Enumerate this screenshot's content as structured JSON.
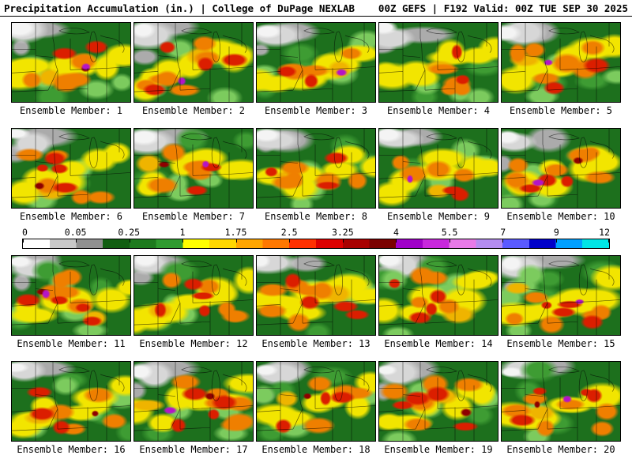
{
  "header": {
    "left": "Precipitation Accumulation (in.) | College of DuPage NEXLAB",
    "right": "00Z GEFS | F192 Valid: 00Z TUE SEP 30 2025"
  },
  "colorbar": {
    "ticks": [
      "0",
      "0.05",
      "0.25",
      "1",
      "1.75",
      "2.5",
      "3.25",
      "4",
      "5.5",
      "7",
      "9",
      "12"
    ],
    "colors": [
      "#FFFFFF",
      "#C8C8C8",
      "#909090",
      "#115E11",
      "#1E7A1E",
      "#2F9B2F",
      "#FFFF00",
      "#FFD700",
      "#FFA500",
      "#FF7800",
      "#FF3000",
      "#DC0000",
      "#A80000",
      "#7A0000",
      "#A000C8",
      "#C828DC",
      "#E87AE8",
      "#B48CF0",
      "#5A5AFF",
      "#0000C8",
      "#00A0FF",
      "#00E6E6"
    ]
  },
  "map_palette": {
    "base": "#1D701D",
    "light_green": "#3E9C33",
    "pale_green": "#7CCB5E",
    "yellow": "#F2E500",
    "gold": "#EFB400",
    "orange": "#EF7F00",
    "red": "#DB1E00",
    "dark_red": "#8E0000",
    "magenta": "#B414C8",
    "gray": "#ABABAB",
    "light_gray": "#D7D7D7",
    "white": "#F4F4F4"
  },
  "panels": [
    {
      "label": "Ensemble Member: 1"
    },
    {
      "label": "Ensemble Member: 2"
    },
    {
      "label": "Ensemble Member: 3"
    },
    {
      "label": "Ensemble Member: 4"
    },
    {
      "label": "Ensemble Member: 5"
    },
    {
      "label": "Ensemble Member: 6"
    },
    {
      "label": "Ensemble Member: 7"
    },
    {
      "label": "Ensemble Member: 8"
    },
    {
      "label": "Ensemble Member: 9"
    },
    {
      "label": "Ensemble Member: 10"
    },
    {
      "label": "Ensemble Member: 11"
    },
    {
      "label": "Ensemble Member: 12"
    },
    {
      "label": "Ensemble Member: 13"
    },
    {
      "label": "Ensemble Member: 14"
    },
    {
      "label": "Ensemble Member: 15"
    },
    {
      "label": "Ensemble Member: 16"
    },
    {
      "label": "Ensemble Member: 17"
    },
    {
      "label": "Ensemble Member: 18"
    },
    {
      "label": "Ensemble Member: 19"
    },
    {
      "label": "Ensemble Member: 20"
    }
  ]
}
